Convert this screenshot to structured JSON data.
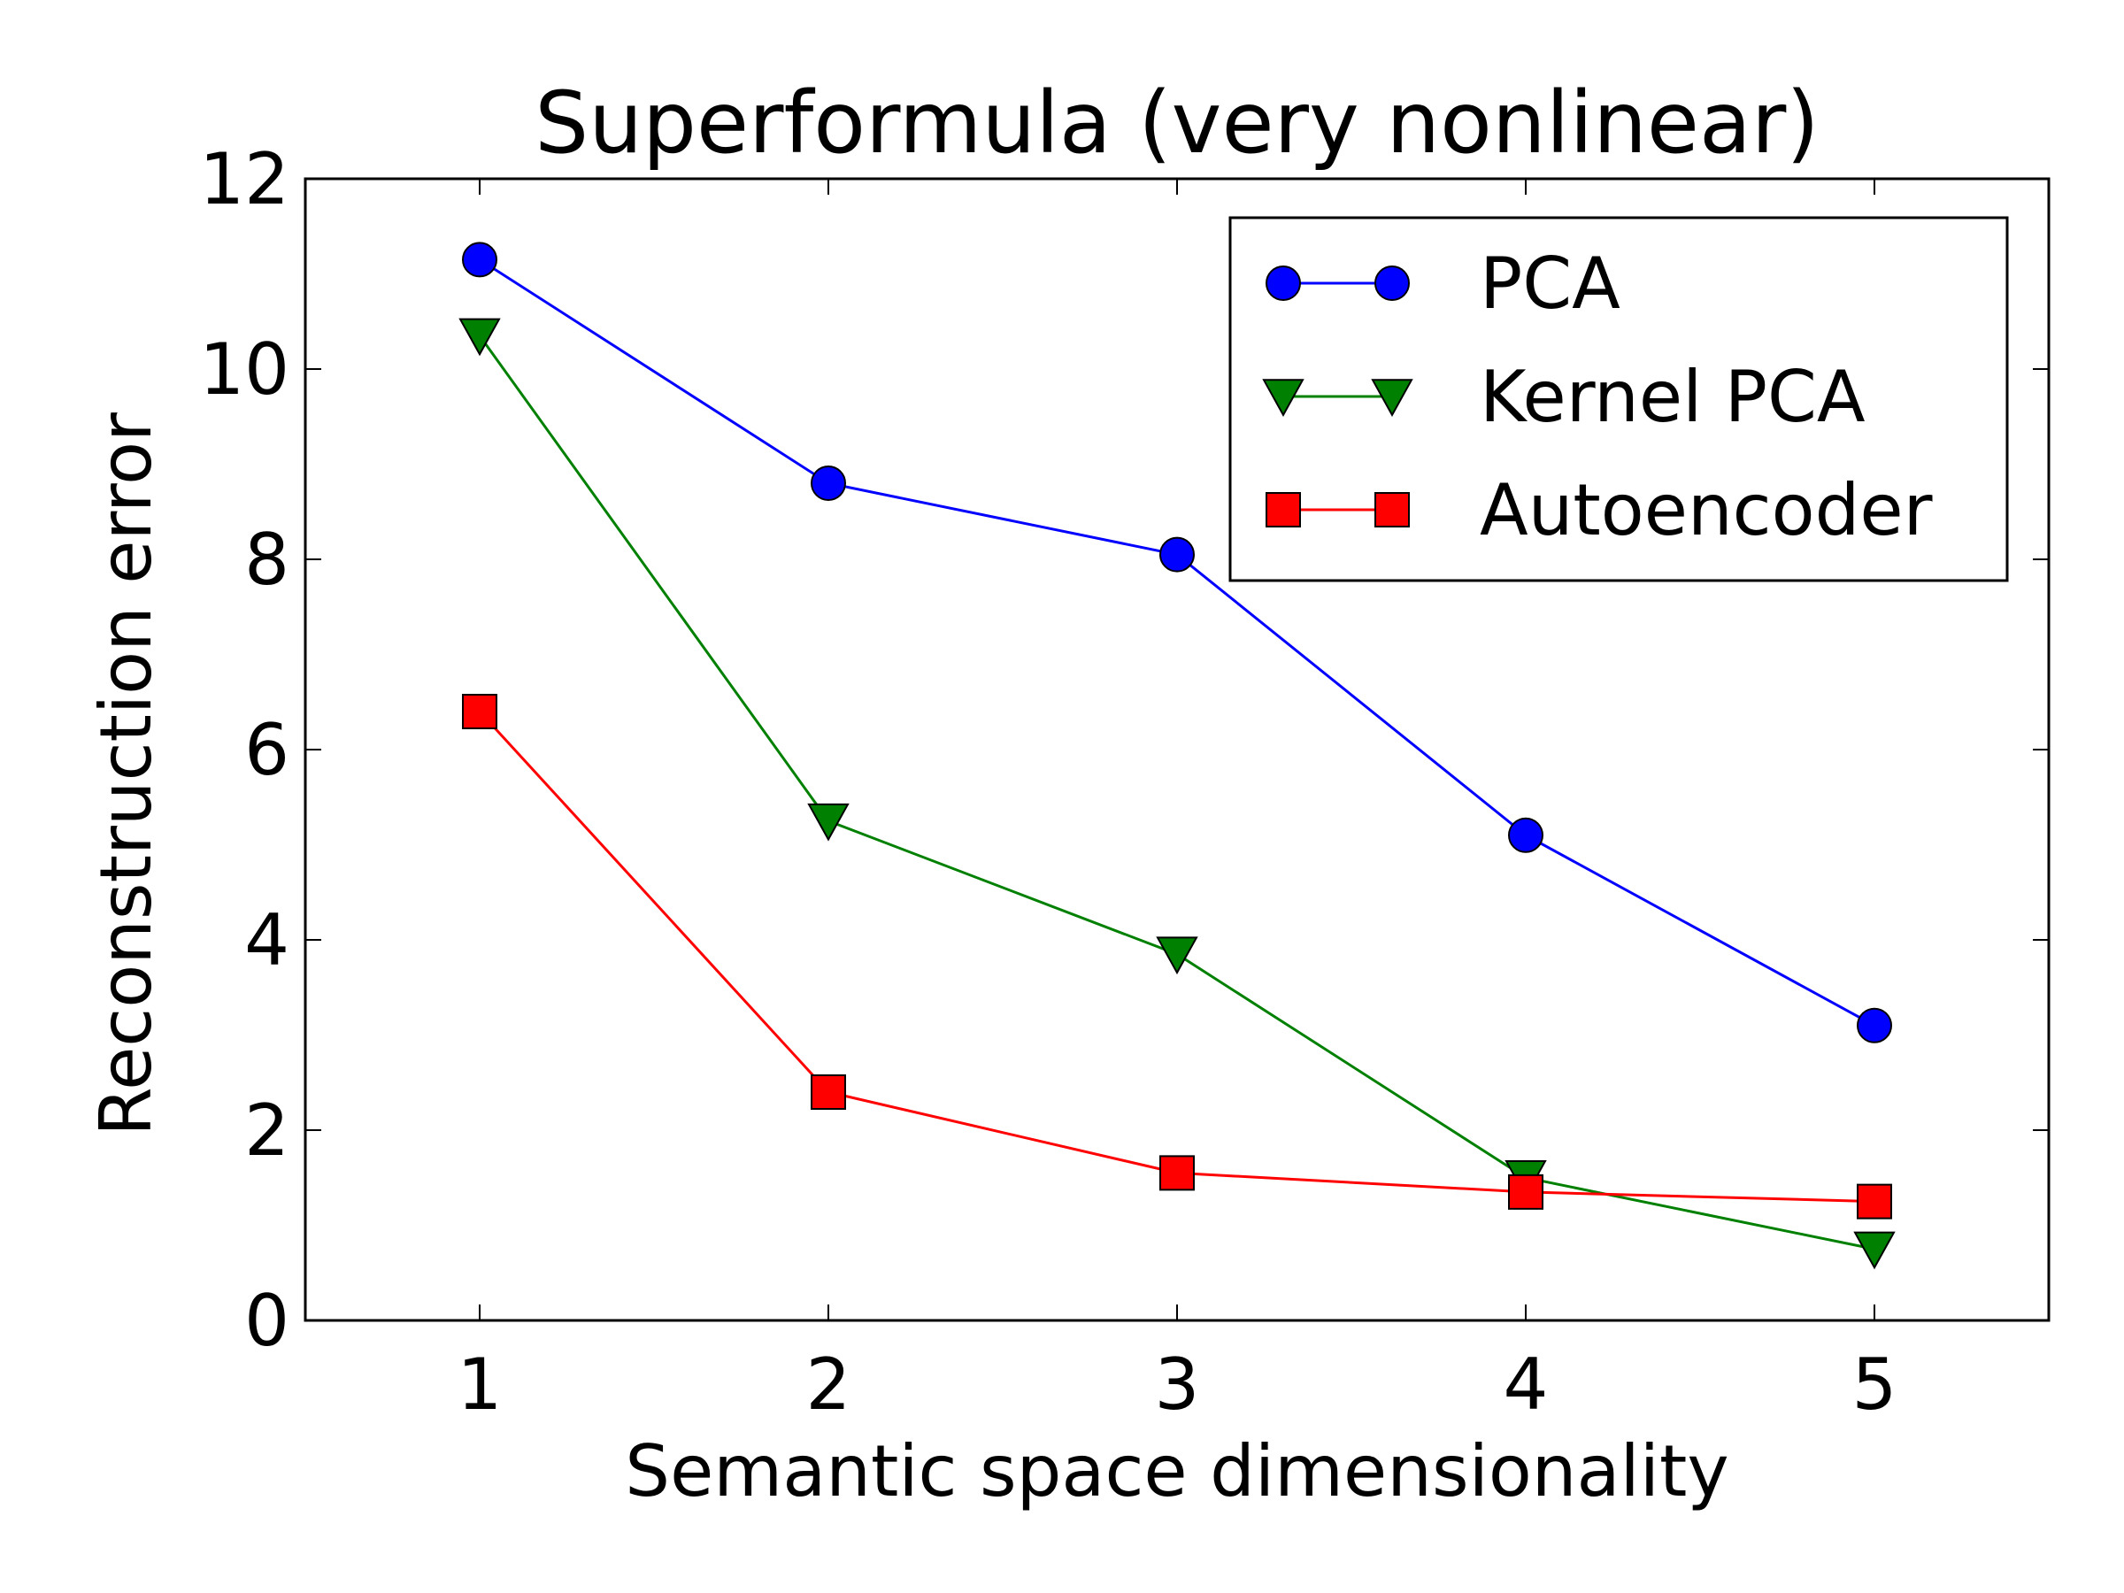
{
  "chart_data": {
    "type": "line",
    "title": "Superformula (very nonlinear)",
    "xlabel": "Semantic space dimensionality",
    "ylabel": "Reconstruction error",
    "x": [
      1,
      2,
      3,
      4,
      5
    ],
    "xlim": [
      0.5,
      5.5
    ],
    "ylim": [
      0,
      12
    ],
    "xticks": [
      "1",
      "2",
      "3",
      "4",
      "5"
    ],
    "yticks": [
      "0",
      "2",
      "4",
      "6",
      "8",
      "10",
      "12"
    ],
    "grid": false,
    "legend_position": "top-right",
    "series": [
      {
        "name": "PCA",
        "marker": "circle",
        "color": "#0000ff",
        "values": [
          11.15,
          8.8,
          8.05,
          5.1,
          3.1
        ]
      },
      {
        "name": "Kernel PCA",
        "marker": "triangle-down",
        "color": "#008000",
        "values": [
          10.35,
          5.25,
          3.85,
          1.5,
          0.75
        ]
      },
      {
        "name": "Autoencoder",
        "marker": "square",
        "color": "#ff0000",
        "values": [
          6.4,
          2.4,
          1.55,
          1.35,
          1.25
        ]
      }
    ]
  }
}
